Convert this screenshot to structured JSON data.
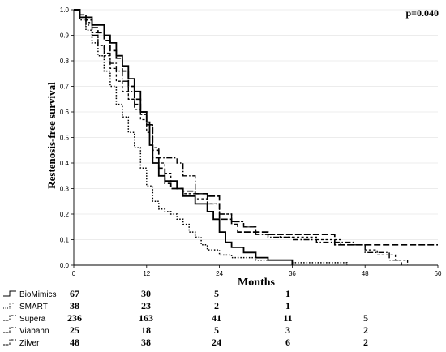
{
  "chart_data": {
    "type": "line",
    "subtype": "kaplan-meier",
    "ylabel": "Restenosis-free survival",
    "xlabel": "Months",
    "annotation": "p=0.040",
    "xlim": [
      0,
      60
    ],
    "ylim": [
      0,
      1.0
    ],
    "x_ticks": [
      "0",
      "12",
      "24",
      "36",
      "48",
      "60"
    ],
    "y_ticks": [
      "0.0",
      "0.1",
      "0.2",
      "0.3",
      "0.4",
      "0.5",
      "0.6",
      "0.7",
      "0.8",
      "0.9",
      "1.0"
    ],
    "series": [
      {
        "name": "BioMimics",
        "style": "solid",
        "points": [
          [
            0,
            1.0
          ],
          [
            1,
            0.97
          ],
          [
            2,
            0.97
          ],
          [
            3,
            0.94
          ],
          [
            4,
            0.94
          ],
          [
            5,
            0.9
          ],
          [
            6,
            0.87
          ],
          [
            7,
            0.82
          ],
          [
            8,
            0.78
          ],
          [
            9,
            0.73
          ],
          [
            10,
            0.68
          ],
          [
            11,
            0.6
          ],
          [
            12,
            0.56
          ],
          [
            12.5,
            0.47
          ],
          [
            13,
            0.4
          ],
          [
            14,
            0.35
          ],
          [
            15,
            0.33
          ],
          [
            17,
            0.3
          ],
          [
            18,
            0.27
          ],
          [
            20,
            0.24
          ],
          [
            22,
            0.21
          ],
          [
            23,
            0.18
          ],
          [
            24,
            0.13
          ],
          [
            25,
            0.09
          ],
          [
            26,
            0.07
          ],
          [
            28,
            0.05
          ],
          [
            30,
            0.03
          ],
          [
            32,
            0.02
          ],
          [
            34,
            0.02
          ],
          [
            36,
            0.0
          ]
        ]
      },
      {
        "name": "SMART",
        "style": "dotted",
        "points": [
          [
            0,
            1.0
          ],
          [
            1,
            0.96
          ],
          [
            2,
            0.92
          ],
          [
            3,
            0.87
          ],
          [
            4,
            0.82
          ],
          [
            5,
            0.76
          ],
          [
            6,
            0.7
          ],
          [
            7,
            0.63
          ],
          [
            8,
            0.58
          ],
          [
            9,
            0.52
          ],
          [
            10,
            0.46
          ],
          [
            11,
            0.38
          ],
          [
            12,
            0.31
          ],
          [
            13,
            0.25
          ],
          [
            14,
            0.22
          ],
          [
            15,
            0.21
          ],
          [
            16,
            0.2
          ],
          [
            17,
            0.18
          ],
          [
            18,
            0.16
          ],
          [
            19,
            0.13
          ],
          [
            20,
            0.11
          ],
          [
            21,
            0.08
          ],
          [
            22,
            0.06
          ],
          [
            24,
            0.04
          ],
          [
            26,
            0.03
          ],
          [
            30,
            0.02
          ],
          [
            36,
            0.01
          ],
          [
            45,
            0.0
          ]
        ]
      },
      {
        "name": "Supera",
        "style": "dash-short",
        "points": [
          [
            0,
            1.0
          ],
          [
            1,
            0.98
          ],
          [
            2,
            0.95
          ],
          [
            3,
            0.91
          ],
          [
            4,
            0.86
          ],
          [
            5,
            0.82
          ],
          [
            6,
            0.77
          ],
          [
            7,
            0.72
          ],
          [
            8,
            0.68
          ],
          [
            9,
            0.65
          ],
          [
            10,
            0.61
          ],
          [
            11,
            0.57
          ],
          [
            12,
            0.52
          ],
          [
            13,
            0.46
          ],
          [
            14,
            0.4
          ],
          [
            15,
            0.36
          ],
          [
            16,
            0.33
          ],
          [
            17,
            0.3
          ],
          [
            18,
            0.28
          ],
          [
            20,
            0.26
          ],
          [
            22,
            0.24
          ],
          [
            24,
            0.2
          ],
          [
            26,
            0.17
          ],
          [
            28,
            0.15
          ],
          [
            30,
            0.13
          ],
          [
            32,
            0.12
          ],
          [
            34,
            0.11
          ],
          [
            36,
            0.11
          ],
          [
            40,
            0.1
          ],
          [
            44,
            0.08
          ],
          [
            48,
            0.06
          ],
          [
            50,
            0.04
          ],
          [
            53,
            0.02
          ],
          [
            55,
            0.0
          ]
        ]
      },
      {
        "name": "Viabahn",
        "style": "dash-long",
        "points": [
          [
            0,
            1.0
          ],
          [
            1,
            0.98
          ],
          [
            2,
            0.96
          ],
          [
            3,
            0.93
          ],
          [
            4,
            0.91
          ],
          [
            5,
            0.88
          ],
          [
            6,
            0.84
          ],
          [
            7,
            0.81
          ],
          [
            8,
            0.76
          ],
          [
            9,
            0.7
          ],
          [
            10,
            0.65
          ],
          [
            11,
            0.6
          ],
          [
            12,
            0.55
          ],
          [
            13,
            0.45
          ],
          [
            14,
            0.38
          ],
          [
            15,
            0.32
          ],
          [
            16,
            0.3
          ],
          [
            18,
            0.29
          ],
          [
            20,
            0.28
          ],
          [
            22,
            0.27
          ],
          [
            24,
            0.18
          ],
          [
            26,
            0.16
          ],
          [
            27,
            0.13
          ],
          [
            30,
            0.13
          ],
          [
            32,
            0.12
          ],
          [
            36,
            0.12
          ],
          [
            40,
            0.12
          ],
          [
            43,
            0.08
          ],
          [
            48,
            0.08
          ],
          [
            60,
            0.08
          ]
        ]
      },
      {
        "name": "Zilver",
        "style": "dash-dot",
        "points": [
          [
            0,
            1.0
          ],
          [
            1,
            0.97
          ],
          [
            2,
            0.94
          ],
          [
            3,
            0.9
          ],
          [
            4,
            0.86
          ],
          [
            5,
            0.83
          ],
          [
            6,
            0.79
          ],
          [
            7,
            0.76
          ],
          [
            8,
            0.72
          ],
          [
            9,
            0.68
          ],
          [
            10,
            0.63
          ],
          [
            11,
            0.59
          ],
          [
            12,
            0.55
          ],
          [
            13,
            0.42
          ],
          [
            14,
            0.42
          ],
          [
            15,
            0.42
          ],
          [
            17,
            0.4
          ],
          [
            18,
            0.35
          ],
          [
            20,
            0.28
          ],
          [
            22,
            0.24
          ],
          [
            24,
            0.2
          ],
          [
            26,
            0.17
          ],
          [
            28,
            0.15
          ],
          [
            30,
            0.12
          ],
          [
            32,
            0.11
          ],
          [
            34,
            0.11
          ],
          [
            36,
            0.1
          ],
          [
            40,
            0.09
          ],
          [
            46,
            0.08
          ],
          [
            48,
            0.05
          ],
          [
            52,
            0.02
          ],
          [
            54,
            0.0
          ]
        ]
      }
    ],
    "risk_table": {
      "columns_at_months": [
        0,
        12,
        24,
        36,
        48
      ],
      "rows": [
        {
          "name": "BioMimics",
          "style": "solid",
          "values": [
            "67",
            "30",
            "5",
            "1",
            ""
          ]
        },
        {
          "name": "SMART",
          "style": "dotted",
          "values": [
            "38",
            "23",
            "2",
            "1",
            ""
          ]
        },
        {
          "name": "Supera",
          "style": "dash-short",
          "values": [
            "236",
            "163",
            "41",
            "11",
            "5"
          ]
        },
        {
          "name": "Viabahn",
          "style": "dash-long",
          "values": [
            "25",
            "18",
            "5",
            "3",
            "2"
          ]
        },
        {
          "name": "Zilver",
          "style": "dash-dot",
          "values": [
            "48",
            "38",
            "24",
            "6",
            "2"
          ]
        }
      ]
    }
  }
}
